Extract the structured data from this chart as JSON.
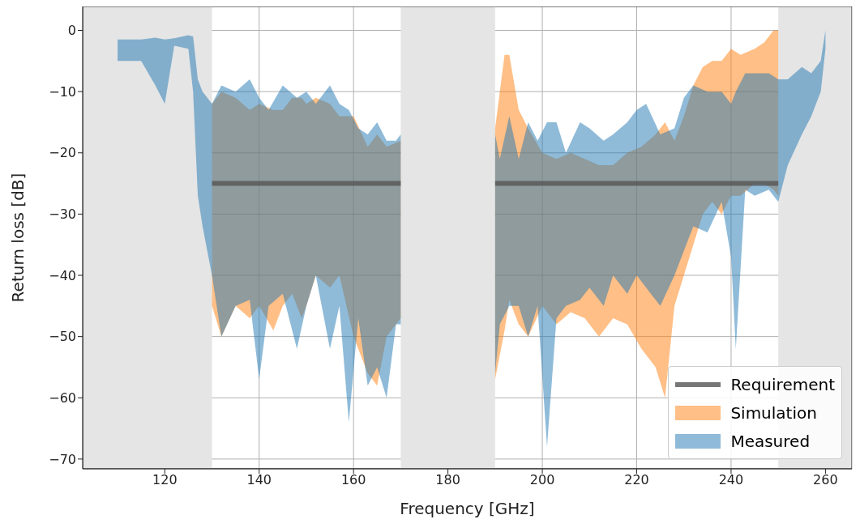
{
  "chart_data": {
    "type": "area",
    "xlabel": "Frequency [GHz]",
    "ylabel": "Return loss [dB]",
    "xlim": [
      102.6,
      265.6
    ],
    "xticks": [
      120,
      140,
      160,
      180,
      200,
      220,
      240,
      260
    ],
    "ylim": [
      -71.6,
      3.9
    ],
    "yticks": [
      0,
      -10,
      -20,
      -30,
      -40,
      -50,
      -60,
      -70
    ],
    "grid": true,
    "legend": "bottom right",
    "bands": [
      {
        "axis": "x",
        "from": 102.6,
        "to": 130,
        "color": "#e5e5e5"
      },
      {
        "axis": "x",
        "from": 170,
        "to": 190,
        "color": "#e5e5e5"
      },
      {
        "axis": "x",
        "from": 250,
        "to": 265.6,
        "color": "#e5e5e5"
      }
    ],
    "series": [
      {
        "name": "Requirement",
        "type": "line",
        "color": "#555555",
        "x": [
          130,
          170,
          180,
          190,
          250
        ],
        "values": [
          -25,
          -25,
          null,
          -25,
          -25
        ]
      },
      {
        "name": "Simulation",
        "color": "#ff7f0e",
        "x": [
          130,
          132,
          135,
          138,
          140,
          143,
          145,
          147,
          149,
          150,
          152,
          155,
          157,
          160,
          163,
          165,
          167,
          170,
          180,
          190,
          192,
          193,
          195,
          197,
          200,
          203,
          206,
          209,
          212,
          215,
          218,
          221,
          224,
          226,
          228,
          230,
          232,
          234,
          236,
          238,
          240,
          242,
          245,
          247,
          249,
          250
        ],
        "values": [
          null,
          null,
          null,
          null,
          null,
          null,
          null,
          null,
          null,
          null,
          null,
          null,
          null,
          null,
          null,
          null,
          null,
          null,
          null,
          null,
          null,
          null,
          null,
          null,
          null,
          null,
          null,
          null,
          null,
          null,
          null,
          null,
          null,
          null,
          null,
          null,
          null,
          null,
          null,
          null,
          null,
          null,
          null,
          null,
          null,
          null
        ],
        "upper": [
          -12,
          -10,
          -11,
          -13,
          -12,
          -13,
          -13,
          -11,
          -11,
          -12,
          -11,
          -12,
          -14,
          -14,
          -19,
          -17,
          -19,
          -18,
          null,
          -16,
          -4,
          -4,
          -13,
          -16,
          -20,
          -21,
          -20,
          -21,
          -22,
          -22,
          -20,
          -19,
          -17,
          -15,
          -18,
          -14,
          -9,
          -6,
          -5,
          -5,
          -3,
          -4,
          -3,
          -2,
          0,
          0
        ],
        "lower": [
          -45,
          -50,
          -45,
          -47,
          -45,
          -49,
          -45,
          -43,
          -47,
          -45,
          -40,
          -42,
          -40,
          -50,
          -56,
          -58,
          -50,
          -47,
          null,
          -57,
          -49,
          -44,
          -48,
          -50,
          -45,
          -48,
          -46,
          -47,
          -50,
          -47,
          -48,
          -52,
          -55,
          -60,
          -45,
          -40,
          -35,
          -30,
          -28,
          -30,
          -27,
          -27,
          -25,
          -25,
          -26,
          -27
        ]
      },
      {
        "name": "Measured",
        "color": "#1f77b4",
        "x": [
          110,
          115,
          118,
          120,
          122,
          125,
          126,
          127,
          128,
          130,
          132,
          135,
          138,
          140,
          142,
          145,
          148,
          150,
          152,
          155,
          157,
          159,
          161,
          163,
          165,
          167,
          169,
          170,
          180,
          190,
          191,
          193,
          195,
          197,
          199,
          201,
          203,
          205,
          208,
          210,
          213,
          215,
          218,
          220,
          222,
          225,
          228,
          230,
          232,
          235,
          238,
          240,
          241,
          243,
          245,
          248,
          250,
          252,
          255,
          257,
          259,
          260
        ],
        "values": [
          null,
          null,
          null,
          null,
          null,
          null,
          null,
          null,
          null,
          null,
          null,
          null,
          null,
          null,
          null,
          null,
          null,
          null,
          null,
          null,
          null,
          null,
          null,
          null,
          null,
          null,
          null,
          null,
          null,
          null,
          null,
          null,
          null,
          null,
          null,
          null,
          null,
          null,
          null,
          null,
          null,
          null,
          null,
          null,
          null,
          null,
          null,
          null,
          null,
          null,
          null,
          null,
          null,
          null,
          null,
          null,
          null,
          null,
          null,
          null,
          null,
          null
        ],
        "upper": [
          -1.5,
          -1.5,
          -1.2,
          -1.5,
          -1.3,
          -0.8,
          -1,
          -8,
          -10,
          -12,
          -9,
          -10,
          -8,
          -11,
          -13,
          -9,
          -11,
          -10,
          -12,
          -9,
          -12,
          -13,
          -16,
          -17,
          -15,
          -18,
          -18,
          -17,
          null,
          -17,
          -21,
          -14,
          -21,
          -15,
          -18,
          -15,
          -15,
          -20,
          -15,
          -16,
          -18,
          -17,
          -15,
          -13,
          -12,
          -17,
          -16,
          -11,
          -9,
          -10,
          -10,
          -12,
          -10,
          -7,
          -7,
          -7,
          -8,
          -8,
          -6,
          -7,
          -5,
          0
        ],
        "lower": [
          -5,
          -5,
          -9,
          -12,
          -2.5,
          -3,
          -10,
          -27,
          -32,
          -40,
          -50,
          -45,
          -44,
          -57,
          -45,
          -43,
          -52,
          -45,
          -40,
          -52,
          -45,
          -64,
          -47,
          -58,
          -55,
          -60,
          -48,
          -48,
          null,
          -56,
          -48,
          -45,
          -45,
          -50,
          -45,
          -68,
          -47,
          -45,
          -44,
          -42,
          -45,
          -40,
          -43,
          -40,
          -42,
          -45,
          -40,
          -36,
          -32,
          -33,
          -28,
          -37,
          -52,
          -26,
          -27,
          -26,
          -28,
          -22,
          -17,
          -14,
          -10,
          -3
        ]
      }
    ]
  }
}
